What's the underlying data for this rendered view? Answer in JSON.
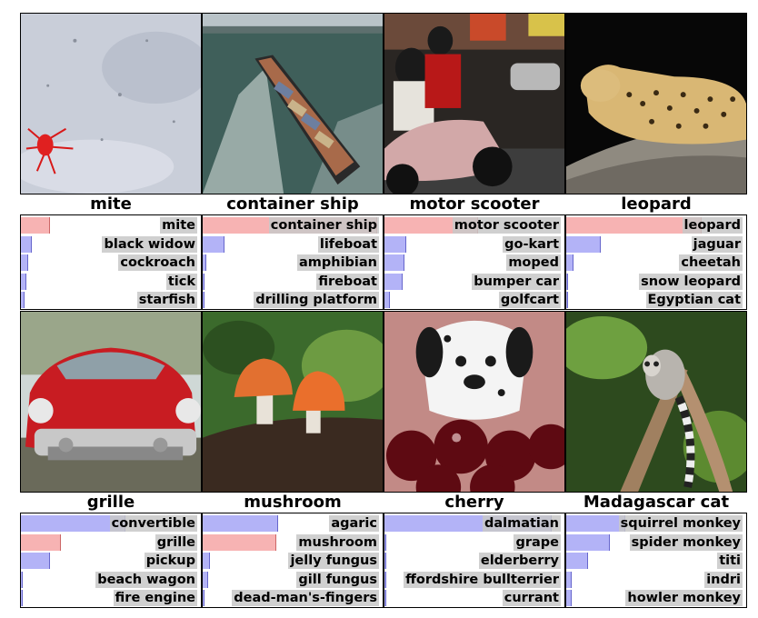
{
  "cells": [
    {
      "gt": "mite",
      "correct": 0,
      "preds": [
        {
          "label": "mite",
          "p": 0.16
        },
        {
          "label": "black widow",
          "p": 0.06
        },
        {
          "label": "cockroach",
          "p": 0.04
        },
        {
          "label": "tick",
          "p": 0.03
        },
        {
          "label": "starfish",
          "p": 0.02
        }
      ]
    },
    {
      "gt": "container ship",
      "correct": 0,
      "preds": [
        {
          "label": "container ship",
          "p": 0.97
        },
        {
          "label": "lifeboat",
          "p": 0.12
        },
        {
          "label": "amphibian",
          "p": 0.02
        },
        {
          "label": "fireboat",
          "p": 0.01
        },
        {
          "label": "drilling platform",
          "p": 0.01
        }
      ]
    },
    {
      "gt": "motor scooter",
      "correct": 0,
      "preds": [
        {
          "label": "motor scooter",
          "p": 0.52
        },
        {
          "label": "go-kart",
          "p": 0.12
        },
        {
          "label": "moped",
          "p": 0.11
        },
        {
          "label": "bumper car",
          "p": 0.1
        },
        {
          "label": "golfcart",
          "p": 0.03
        }
      ]
    },
    {
      "gt": "leopard",
      "correct": 0,
      "preds": [
        {
          "label": "leopard",
          "p": 0.75
        },
        {
          "label": "jaguar",
          "p": 0.19
        },
        {
          "label": "cheetah",
          "p": 0.04
        },
        {
          "label": "snow leopard",
          "p": 0.01
        },
        {
          "label": "Egyptian cat",
          "p": 0.01
        }
      ]
    },
    {
      "gt": "grille",
      "correct": 1,
      "preds": [
        {
          "label": "convertible",
          "p": 0.58
        },
        {
          "label": "grille",
          "p": 0.22
        },
        {
          "label": "pickup",
          "p": 0.16
        },
        {
          "label": "beach wagon",
          "p": 0.01
        },
        {
          "label": "fire engine",
          "p": 0.01
        }
      ]
    },
    {
      "gt": "mushroom",
      "correct": 1,
      "preds": [
        {
          "label": "agaric",
          "p": 0.42
        },
        {
          "label": "mushroom",
          "p": 0.41
        },
        {
          "label": "jelly fungus",
          "p": 0.04
        },
        {
          "label": "gill fungus",
          "p": 0.03
        },
        {
          "label": "dead-man's-fingers",
          "p": 0.01
        }
      ]
    },
    {
      "gt": "cherry",
      "correct": -1,
      "preds": [
        {
          "label": "dalmatian",
          "p": 0.93
        },
        {
          "label": "grape",
          "p": 0.01
        },
        {
          "label": "elderberry",
          "p": 0.01
        },
        {
          "label": "ffordshire bullterrier",
          "p": 0.01
        },
        {
          "label": "currant",
          "p": 0.01
        }
      ]
    },
    {
      "gt": "Madagascar cat",
      "correct": -1,
      "preds": [
        {
          "label": "squirrel monkey",
          "p": 0.33
        },
        {
          "label": "spider monkey",
          "p": 0.24
        },
        {
          "label": "titi",
          "p": 0.12
        },
        {
          "label": "indri",
          "p": 0.03
        },
        {
          "label": "howler monkey",
          "p": 0.03
        }
      ]
    }
  ],
  "colors": {
    "correct": "#f7b3b3",
    "other": "#b3b3f7"
  },
  "photos": [
    "mite-photo",
    "container-ship-photo",
    "motor-scooter-photo",
    "leopard-photo",
    "grille-photo",
    "mushroom-photo",
    "cherry-photo",
    "madagascar-cat-photo"
  ]
}
